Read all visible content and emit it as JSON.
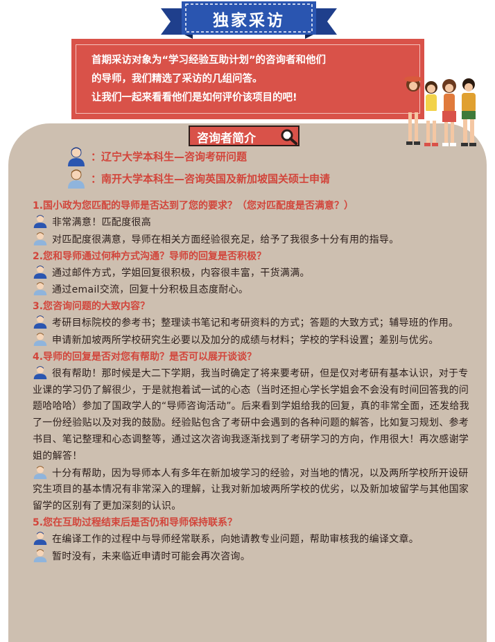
{
  "banner": {
    "title": "独家采访"
  },
  "intro": {
    "lines": [
      "首期采访对象为“学习经验互助计划”的咨询者和他们",
      "的导师，我们精选了采访的几组问答。",
      "让我们一起来看看他们是如何评价该项目的吧!"
    ]
  },
  "section": {
    "title": "咨询者简介"
  },
  "interviewees": [
    {
      "desc": "：辽宁大学本科生—咨询考研问题"
    },
    {
      "desc": "：南开大学本科生—咨询英国及新加坡国关硕士申请"
    }
  ],
  "qa": [
    {
      "q": "1.国小政为您匹配的导师是否达到了您的要求？（您对匹配度是否满意？）",
      "a1": "非常满意！匹配度很高",
      "a2": "对匹配度很满意，导师在相关方面经验很充足，给予了我很多十分有用的指导。"
    },
    {
      "q": "2.您和导师通过何种方式沟通？导师的回复是否积极？",
      "a1": "通过邮件方式，学姐回复很积极，内容很丰富，干货满满。",
      "a2": "通过email交流，回复十分积极且态度耐心。"
    },
    {
      "q": "3.您咨询问题的大致内容？",
      "a1": "考研目标院校的参考书；整理读书笔记和考研资料的方式；答题的大致方式；辅导班的作用。",
      "a2": "申请新加坡两所学校研究生必要以及加分的成绩与材料；学校的学科设置；差别与优劣。"
    },
    {
      "q": "4.导师的回复是否对您有帮助？是否可以展开谈谈？",
      "a1": "很有帮助！那时候是大二下学期，我当时确定了将来要考研，但是仅对考研有基本认识，对于专业课的学习仍了解很少，于是就抱着试一试的心态（当时还担心学长学姐会不会没有时间回答我的问题哈哈哈）参加了国政学人的“导师咨询活动”。后来看到学姐给我的回复，真的非常全面，还发给我了一份经验贴以及对我的鼓励。经验贴包含了考研中会遇到的各种问题的解答，比如复习规划、参考书目、笔记整理和心态调整等，通过这次咨询我逐渐找到了考研学习的方向，作用很大！再次感谢学姐的解答！",
      "a2": "十分有帮助，因为导师本人有多年在新加坡学习的经验，对当地的情况，以及两所学校所开设研究生项目的基本情况有非常深入的理解，让我对新加坡两所学校的优劣，以及新加坡留学与其他国家留学的区别有了更加深刻的认识。"
    },
    {
      "q": "5.您在互助过程结束后是否仍和导师保持联系？",
      "a1": "在编译工作的过程中与导师经常联系，向她请教专业问题，帮助审核我的编译文章。",
      "a2": "暂时没有，未来临近申请时可能会再次咨询。"
    }
  ]
}
